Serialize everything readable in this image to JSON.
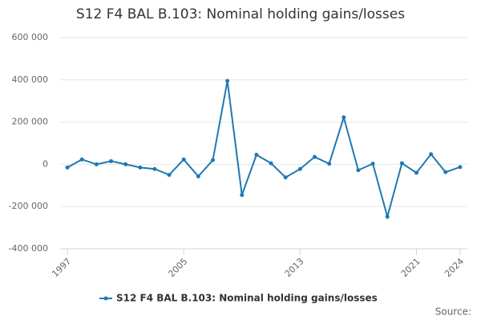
{
  "chart_data": {
    "type": "line",
    "title": "S12 F4 BAL B.103: Nominal holding gains/losses",
    "x": [
      1997,
      1998,
      1999,
      2000,
      2001,
      2002,
      2003,
      2004,
      2005,
      2006,
      2007,
      2008,
      2009,
      2010,
      2011,
      2012,
      2013,
      2014,
      2015,
      2016,
      2017,
      2018,
      2019,
      2020,
      2021,
      2022,
      2023,
      2024
    ],
    "series": [
      {
        "name": "S12 F4 BAL B.103: Nominal holding gains/losses",
        "color": "#1f78b4",
        "values": [
          -15000,
          23000,
          0,
          15000,
          0,
          -15000,
          -22000,
          -50000,
          23000,
          -57000,
          20000,
          395000,
          -145000,
          45000,
          5000,
          -62000,
          -22000,
          35000,
          3000,
          222000,
          -28000,
          3000,
          -248000,
          5000,
          -40000,
          48000,
          -37000,
          -13000
        ]
      }
    ],
    "xlim": [
      1996.5,
      2024.5
    ],
    "xticks": [
      1997,
      2005,
      2013,
      2021,
      2024
    ],
    "ylim": [
      -400000,
      600000
    ],
    "yticks": [
      {
        "value": -400000,
        "label": "-400 000"
      },
      {
        "value": -200000,
        "label": "-200 000"
      },
      0,
      {
        "value": 200000,
        "label": "200 000"
      },
      {
        "value": 400000,
        "label": "400 000"
      },
      {
        "value": 600000,
        "label": "600 000"
      }
    ],
    "grid": true,
    "legend": "bottom",
    "source": "Source:"
  }
}
